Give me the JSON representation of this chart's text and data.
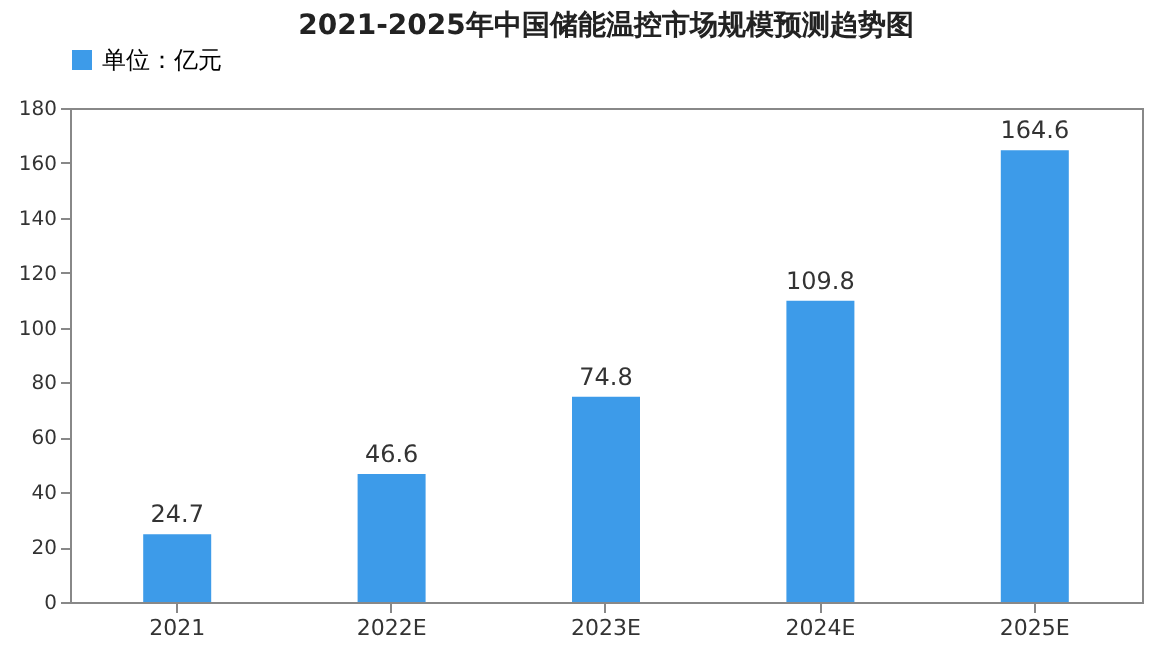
{
  "chart_data": {
    "type": "bar",
    "title": "2021-2025年中国储能温控市场规模预测趋势图",
    "categories": [
      "2021",
      "2022E",
      "2023E",
      "2024E",
      "2025E"
    ],
    "series": [
      {
        "name": "单位：亿元",
        "color": "#3d9be9",
        "values": [
          24.7,
          46.6,
          74.8,
          109.8,
          164.6
        ]
      }
    ],
    "ylim": [
      0,
      180
    ],
    "yticks": [
      0,
      20,
      40,
      60,
      80,
      100,
      120,
      140,
      160,
      180
    ],
    "grid": false,
    "legend": "top",
    "data_labels": true
  }
}
